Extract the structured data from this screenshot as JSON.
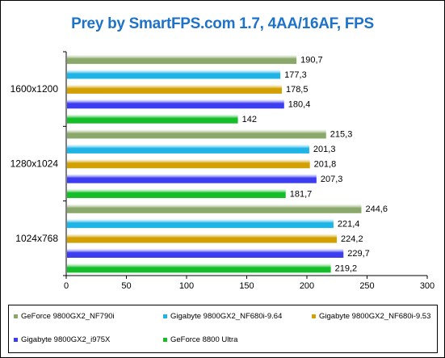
{
  "chart_data": {
    "type": "bar",
    "orientation": "horizontal",
    "title": "Prey by SmartFPS.com 1.7, 4AA/16AF, FPS",
    "categories": [
      "1600x1200",
      "1280x1024",
      "1024x768"
    ],
    "series": [
      {
        "name": "GeForce 9800GX2_NF790i",
        "color": "#8aa86a",
        "values": [
          190.7,
          215.3,
          244.6
        ],
        "labels": [
          "190,7",
          "215,3",
          "244,6"
        ]
      },
      {
        "name": "Gigabyte 9800GX2_NF680i-9.64",
        "color": "#1eb4e6",
        "values": [
          177.3,
          201.3,
          221.4
        ],
        "labels": [
          "177,3",
          "201,3",
          "221,4"
        ]
      },
      {
        "name": "Gigabyte 9800GX2_NF680i-9.53",
        "color": "#d2a000",
        "values": [
          178.5,
          201.8,
          224.2
        ],
        "labels": [
          "178,5",
          "201,8",
          "224,2"
        ]
      },
      {
        "name": "Gigabyte 9800GX2_i975X",
        "color": "#3c3cf0",
        "values": [
          180.4,
          207.3,
          229.7
        ],
        "labels": [
          "180,4",
          "207,3",
          "229,7"
        ]
      },
      {
        "name": "GeForce 8800 Ultra",
        "color": "#14be28",
        "values": [
          142,
          181.7,
          219.2
        ],
        "labels": [
          "142",
          "181,7",
          "219,2"
        ]
      }
    ],
    "xlim": [
      0,
      300
    ],
    "xticks": [
      0,
      50,
      100,
      150,
      200,
      250,
      300
    ],
    "grid": false,
    "legend": "bottom"
  }
}
